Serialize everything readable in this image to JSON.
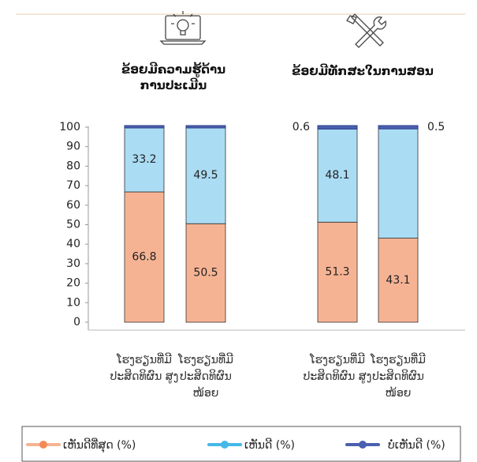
{
  "chart_data": [
    {
      "type": "stacked_bar",
      "title": "ຂ້ອຍມີຄວາມຮູ້ດ້ານ ການປະເມີນ",
      "categories": [
        "ໂຮງຮຽນທີ່ມີ ປະສິດທິຜົນ ສູງ",
        "ໂຮງຮຽນທີ່ມີ ປະສິດທິຜົນ ໜ້ອຍ"
      ],
      "series": [
        {
          "name": "ເຫັນດີທີ່ສຸດ (%)",
          "color": "#f6b393",
          "values": [
            66.8,
            50.5
          ],
          "value_labels": [
            "66.8",
            "50.5"
          ]
        },
        {
          "name": "ເຫັນດີ (%)",
          "color": "#aadcf3",
          "values": [
            33.2,
            49.5
          ],
          "value_labels": [
            "33.2",
            "49.5"
          ]
        },
        {
          "name": "ບໍ່ເຫັນດີ (%)",
          "color": "#4b5fb0",
          "values": [
            0,
            0
          ],
          "value_labels": [
            null,
            null
          ]
        }
      ],
      "ylim": [
        0,
        100
      ],
      "yticks": [
        0,
        10,
        20,
        30,
        40,
        50,
        60,
        70,
        80,
        90,
        100
      ]
    },
    {
      "type": "stacked_bar",
      "title": "ຂ້ອຍມີທັກສະໃນການສອນ",
      "categories": [
        "ໂຮງຮຽນທີ່ມີ ປະສິດທິຜົນ ສູງ",
        "ໂຮງຮຽນທີ່ມີ ປະສິດທິຜົນ ໜ້ອຍ"
      ],
      "series": [
        {
          "name": "ເຫັນດີທີ່ສຸດ (%)",
          "color": "#f6b393",
          "values": [
            51.3,
            43.1
          ],
          "value_labels": [
            "51.3",
            "43.1"
          ]
        },
        {
          "name": "ເຫັນດີ (%)",
          "color": "#aadcf3",
          "values": [
            48.1,
            56.4
          ],
          "value_labels": [
            "48.1",
            null
          ]
        },
        {
          "name": "ບໍ່ເຫັນດີ (%)",
          "color": "#4b5fb0",
          "values": [
            0.6,
            0.5
          ],
          "value_labels": [
            "0.6",
            "0.5"
          ]
        }
      ],
      "ylim": [
        0,
        100
      ]
    }
  ]
}
